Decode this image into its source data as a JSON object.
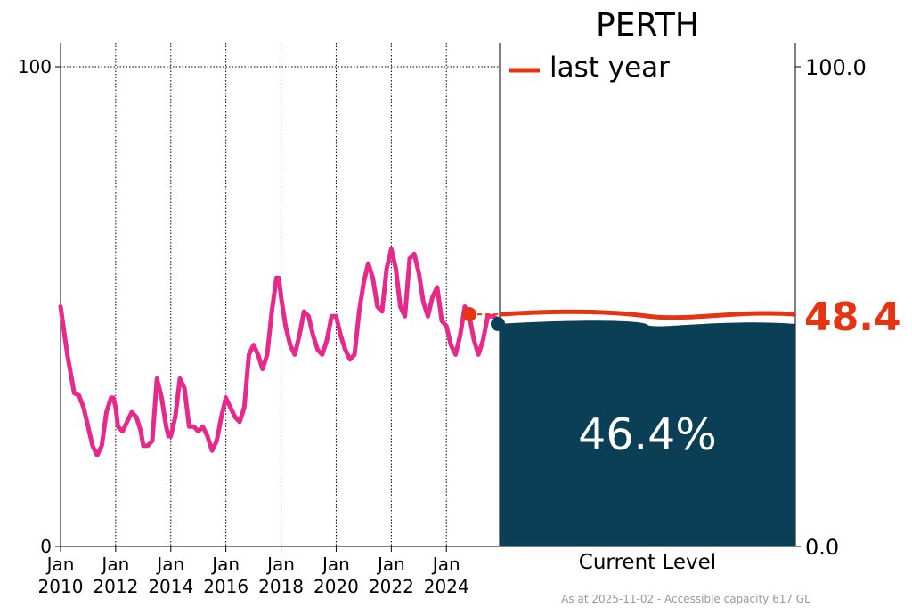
{
  "chart_data": {
    "type": "line",
    "title": "PERTH",
    "legend": {
      "label": "last year",
      "placement": "top-right"
    },
    "footer": "As at 2025-11-02 - Accessible capacity 617 GL",
    "current_level_label": "Current Level",
    "current_value_label": "46.4%",
    "last_year_value_label": "48.4",
    "y_left": {
      "min": 0,
      "max": 100,
      "ticks": [
        "0",
        "100"
      ]
    },
    "y_right": {
      "ticks": [
        "0.0",
        "100.0"
      ]
    },
    "x_ticks": [
      {
        "date": "2010-01-01",
        "label_month": "Jan",
        "label_year": "2010"
      },
      {
        "date": "2012-01-01",
        "label_month": "Jan",
        "label_year": "2012"
      },
      {
        "date": "2014-01-01",
        "label_month": "Jan",
        "label_year": "2014"
      },
      {
        "date": "2016-01-01",
        "label_month": "Jan",
        "label_year": "2016"
      },
      {
        "date": "2018-01-01",
        "label_month": "Jan",
        "label_year": "2018"
      },
      {
        "date": "2020-01-01",
        "label_month": "Jan",
        "label_year": "2020"
      },
      {
        "date": "2022-01-01",
        "label_month": "Jan",
        "label_year": "2022"
      },
      {
        "date": "2024-01-01",
        "label_month": "Jan",
        "label_year": "2024"
      }
    ],
    "x_range": [
      "2010-01-01",
      "2025-11-02"
    ],
    "grid": true,
    "current_value": 46.4,
    "last_year_value": 48.4,
    "colors": {
      "series": "#e6298b",
      "last_year": "#e63312",
      "current_fill": "#0a3f56",
      "value_text": "#ffffff"
    },
    "series": [
      {
        "x": [
          "2010-01-01",
          "2010-04-01",
          "2010-07-01",
          "2010-09-01",
          "2010-11-01",
          "2011-01-01",
          "2011-03-01",
          "2011-05-01",
          "2011-07-01",
          "2011-09-01",
          "2011-11-01",
          "2011-12-01",
          "2012-01-01",
          "2012-02-01",
          "2012-04-01",
          "2012-06-01",
          "2012-08-01",
          "2012-10-01",
          "2012-12-01",
          "2013-01-01",
          "2013-03-01",
          "2013-05-01",
          "2013-07-01",
          "2013-09-01",
          "2013-11-01",
          "2013-12-01",
          "2014-01-01",
          "2014-03-01",
          "2014-05-01",
          "2014-07-01",
          "2014-09-01",
          "2014-11-01",
          "2015-01-01",
          "2015-03-01",
          "2015-05-01",
          "2015-07-01",
          "2015-09-01",
          "2015-11-01",
          "2016-01-01",
          "2016-03-01",
          "2016-05-01",
          "2016-07-01",
          "2016-09-01",
          "2016-11-01",
          "2017-01-01",
          "2017-03-01",
          "2017-05-01",
          "2017-07-01",
          "2017-09-01",
          "2017-11-01",
          "2017-12-01",
          "2018-01-01",
          "2018-03-01",
          "2018-05-01",
          "2018-07-01",
          "2018-09-01",
          "2018-11-01",
          "2019-01-01",
          "2019-03-01",
          "2019-05-01",
          "2019-07-01",
          "2019-09-01",
          "2019-11-01",
          "2020-01-01",
          "2020-03-01",
          "2020-05-01",
          "2020-07-01",
          "2020-09-01",
          "2020-11-01",
          "2021-01-01",
          "2021-03-01",
          "2021-05-01",
          "2021-07-01",
          "2021-09-01",
          "2021-11-01",
          "2022-01-01",
          "2022-03-01",
          "2022-05-01",
          "2022-07-01",
          "2022-09-01",
          "2022-11-01",
          "2023-01-01",
          "2023-03-01",
          "2023-05-01",
          "2023-07-01",
          "2023-09-01",
          "2023-11-01",
          "2024-01-01",
          "2024-03-01",
          "2024-05-01",
          "2024-07-01",
          "2024-09-01",
          "2024-11-01",
          "2025-01-01",
          "2025-03-01",
          "2025-05-01",
          "2025-07-01",
          "2025-09-01",
          "2025-11-01"
        ],
        "y": [
          50,
          40,
          32,
          31.5,
          29,
          25,
          21,
          19,
          21,
          28,
          31,
          31,
          29,
          25,
          24,
          26,
          28,
          27,
          24,
          21,
          21,
          22,
          35,
          31,
          25,
          23,
          23,
          27,
          35,
          33,
          25,
          25,
          24,
          25,
          23,
          20,
          22,
          27,
          31,
          29,
          27,
          26,
          29,
          40,
          42,
          40,
          37,
          40,
          49,
          56,
          56,
          52,
          46,
          42,
          40,
          44,
          49,
          48,
          44,
          41,
          40,
          43,
          48,
          48,
          44,
          41,
          39,
          40,
          49,
          55,
          59,
          56,
          50,
          49,
          58,
          62,
          58,
          50,
          48,
          60,
          61,
          57,
          51,
          48,
          52,
          54,
          47,
          46,
          42,
          40,
          44,
          50,
          48,
          43,
          40,
          43,
          48,
          48,
          47.5
        ]
      }
    ]
  }
}
